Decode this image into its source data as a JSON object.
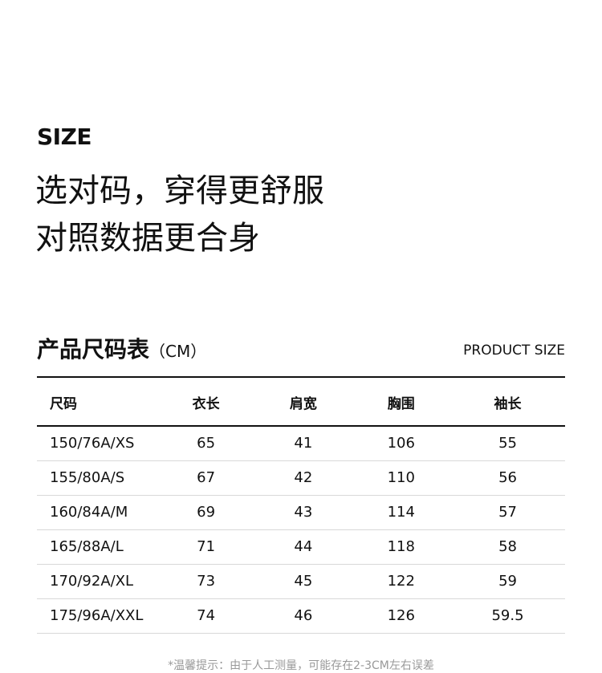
{
  "title": "SIZE",
  "slogan_line1": "选对码，穿得更舒服",
  "slogan_line2": "对照数据更合身",
  "table_title": "产品尺码表",
  "table_unit": "（CM）",
  "table_subtitle": "PRODUCT SIZE",
  "headers": [
    "尺码",
    "衣长",
    "肩宽",
    "胸围",
    "袖长"
  ],
  "rows": [
    [
      "150/76A/XS",
      "65",
      "41",
      "106",
      "55"
    ],
    [
      "155/80A/S",
      "67",
      "42",
      "110",
      "56"
    ],
    [
      "160/84A/M",
      "69",
      "43",
      "114",
      "57"
    ],
    [
      "165/88A/L",
      "71",
      "44",
      "118",
      "58"
    ],
    [
      "170/92A/XL",
      "73",
      "45",
      "122",
      "59"
    ],
    [
      "175/96A/XXL",
      "74",
      "46",
      "126",
      "59.5"
    ]
  ],
  "note": "*温馨提示：由于人工测量，可能存在2-3CM左右误差"
}
